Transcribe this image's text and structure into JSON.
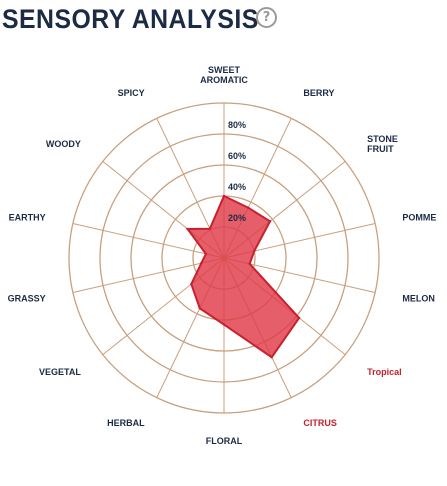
{
  "header": {
    "title": "SENSORY ANALYSIS",
    "help_glyph": "?"
  },
  "colors": {
    "text": "#1c2b45",
    "highlight": "#c8202e",
    "grid": "#c9a07e",
    "fill": "#e03a48",
    "stroke": "#c8202e"
  },
  "chart_data": {
    "type": "radar",
    "title": "",
    "rlim": [
      0,
      100
    ],
    "ticks": [
      20,
      40,
      60,
      80
    ],
    "tick_labels": [
      "20%",
      "40%",
      "60%",
      "80%"
    ],
    "axes": [
      {
        "label": "SWEET\nAROMATIC",
        "value": 40,
        "highlight": false
      },
      {
        "label": "BERRY",
        "value": 36,
        "highlight": false
      },
      {
        "label": "STONE\nFRUIT",
        "value": 38,
        "highlight": false
      },
      {
        "label": "POMME",
        "value": 20,
        "highlight": false
      },
      {
        "label": "MELON",
        "value": 17,
        "highlight": false
      },
      {
        "label": "Tropical",
        "value": 62,
        "highlight": true
      },
      {
        "label": "CITRUS",
        "value": 71,
        "highlight": true
      },
      {
        "label": "FLORAL",
        "value": 43,
        "highlight": false
      },
      {
        "label": "HERBAL",
        "value": 36,
        "highlight": false
      },
      {
        "label": "VEGETAL",
        "value": 27,
        "highlight": false
      },
      {
        "label": "GRASSY",
        "value": 15,
        "highlight": false
      },
      {
        "label": "EARTHY",
        "value": 12,
        "highlight": false
      },
      {
        "label": "WOODY",
        "value": 30,
        "highlight": false
      },
      {
        "label": "SPICY",
        "value": 21,
        "highlight": false
      }
    ]
  }
}
